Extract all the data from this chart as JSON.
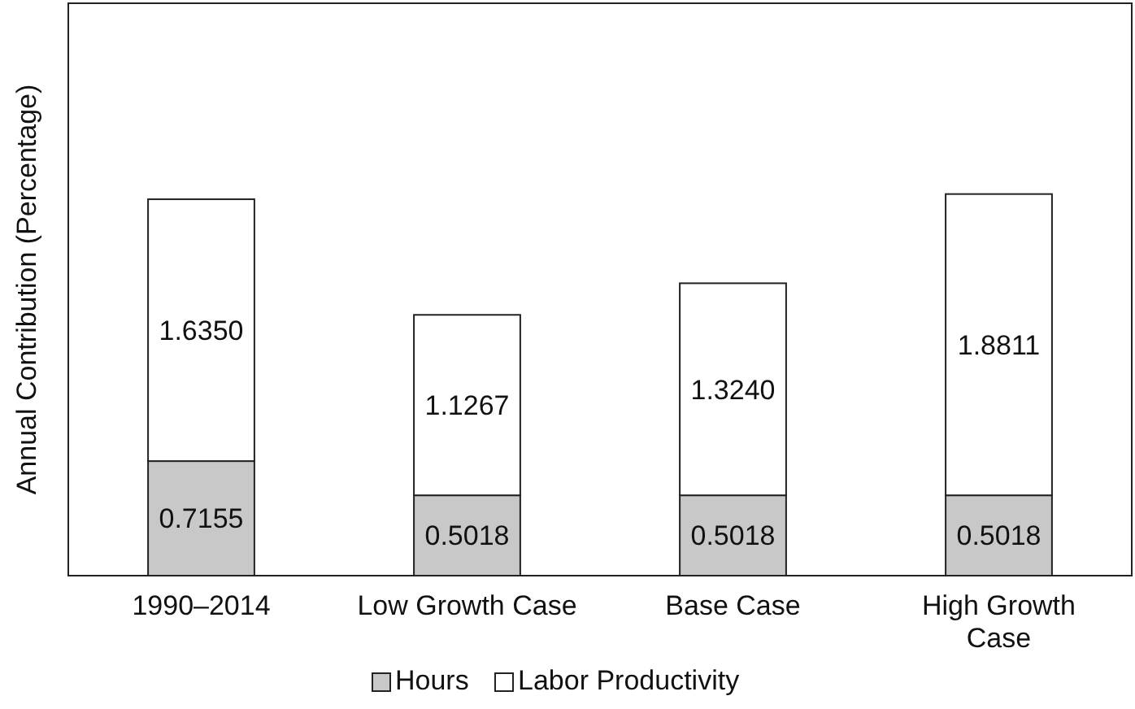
{
  "chart_data": {
    "type": "bar",
    "ylabel": "Annual Contribution (Percentage)",
    "categories": [
      "1990–2014",
      "Low Growth Case",
      "Base Case",
      "High Growth Case"
    ],
    "stacked": true,
    "legend": "bottom",
    "series": [
      {
        "name": "Hours",
        "color": "#c8c8c8",
        "values": [
          0.7155,
          0.5018,
          0.5018,
          0.5018
        ],
        "value_labels": [
          "0.7155",
          "0.5018",
          "0.5018",
          "0.5018"
        ]
      },
      {
        "name": "Labor Productivity",
        "color": "#ffffff",
        "values": [
          1.635,
          1.1267,
          1.324,
          1.8811
        ],
        "value_labels": [
          "1.6350",
          "1.1267",
          "1.3240",
          "1.8811"
        ]
      }
    ]
  }
}
